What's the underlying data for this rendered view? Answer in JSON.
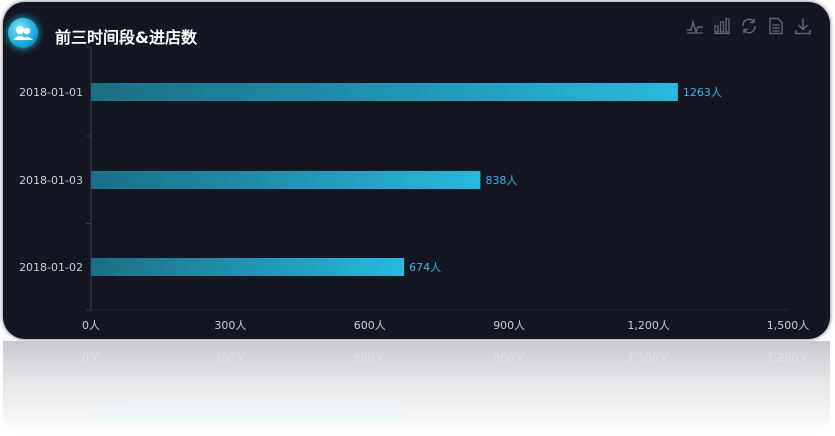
{
  "title": "前三时间段&进店数",
  "toolbox": [
    {
      "name": "line-chart-icon"
    },
    {
      "name": "bar-chart-icon"
    },
    {
      "name": "refresh-icon"
    },
    {
      "name": "data-view-icon"
    },
    {
      "name": "download-icon"
    }
  ],
  "colors": {
    "background": "#141722",
    "bar_start": "#1a6f86",
    "bar_end": "#27b9de",
    "label": "#2bb8e0",
    "axis_text": "#c8ccd4"
  },
  "chart_data": {
    "type": "bar",
    "orientation": "horizontal",
    "title": "前三时间段&进店数",
    "categories": [
      "2018-01-01",
      "2018-01-03",
      "2018-01-02"
    ],
    "series": [
      {
        "values": [
          1263,
          838,
          674
        ],
        "value_labels": [
          "1263人",
          "838人",
          "674人"
        ]
      }
    ],
    "x_ticks": [
      0,
      300,
      600,
      900,
      1200,
      1500
    ],
    "x_tick_labels": [
      "0人",
      "300人",
      "600人",
      "900人",
      "1,200人",
      "1,500人"
    ],
    "xlim": [
      0,
      1500
    ],
    "grid": false,
    "legend": "none"
  }
}
